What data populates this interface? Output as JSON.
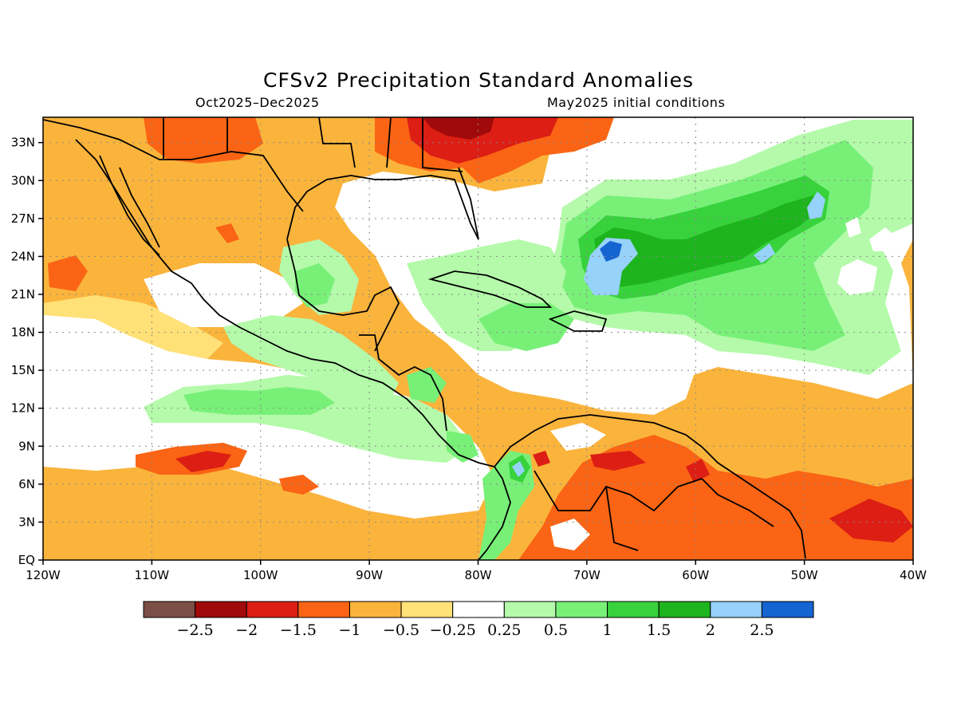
{
  "title": "CFSv2 Precipitation Standard Anomalies",
  "subtitle_left": "Oct2025–Dec2025",
  "subtitle_right": "May2025 initial conditions",
  "axes": {
    "lon_min": -120,
    "lon_max": -40,
    "lat_min": 0,
    "lat_max": 35,
    "lon_ticks": [
      {
        "value": -120,
        "label": "120W"
      },
      {
        "value": -110,
        "label": "110W"
      },
      {
        "value": -100,
        "label": "100W"
      },
      {
        "value": -90,
        "label": "90W"
      },
      {
        "value": -80,
        "label": "80W"
      },
      {
        "value": -70,
        "label": "70W"
      },
      {
        "value": -60,
        "label": "60W"
      },
      {
        "value": -50,
        "label": "50W"
      },
      {
        "value": -40,
        "label": "40W"
      }
    ],
    "lat_ticks": [
      {
        "value": 0,
        "label": "EQ"
      },
      {
        "value": 3,
        "label": "3N"
      },
      {
        "value": 6,
        "label": "6N"
      },
      {
        "value": 9,
        "label": "9N"
      },
      {
        "value": 12,
        "label": "12N"
      },
      {
        "value": 15,
        "label": "15N"
      },
      {
        "value": 18,
        "label": "18N"
      },
      {
        "value": 21,
        "label": "21N"
      },
      {
        "value": 24,
        "label": "24N"
      },
      {
        "value": 27,
        "label": "27N"
      },
      {
        "value": 30,
        "label": "30N"
      },
      {
        "value": 33,
        "label": "33N"
      }
    ],
    "grid": "dotted"
  },
  "colorbar": {
    "colors": [
      "#7b4f45",
      "#a00a0a",
      "#dc1e14",
      "#fa6414",
      "#fab43c",
      "#ffe178",
      "#ffffff",
      "#b4faaa",
      "#78f078",
      "#37d23c",
      "#1eb41e",
      "#96d2fa",
      "#1464d2"
    ],
    "labels": [
      "−2.5",
      "−2",
      "−1.5",
      "−1",
      "−0.5",
      "−0.25",
      "0.25",
      "0.5",
      "1",
      "1.5",
      "2",
      "2.5"
    ]
  },
  "regions": [
    {
      "name": "mexico-interior",
      "level": -0.5,
      "color": "#fab43c"
    },
    {
      "name": "southeast-us",
      "level": -2.5,
      "color": "#a00a0a"
    },
    {
      "name": "western-atlantic",
      "level": 1.5,
      "color": "#37d23c"
    },
    {
      "name": "atlantic-maximum",
      "level": 2.5,
      "color": "#1464d2"
    },
    {
      "name": "northern-south-america",
      "level": -1,
      "color": "#fa6414"
    },
    {
      "name": "eastern-pacific-itcz",
      "level": -1.5,
      "color": "#dc1e14"
    },
    {
      "name": "colombia-pacific-coast",
      "level": 2,
      "color": "#96d2fa"
    },
    {
      "name": "central-america",
      "level": 0.5,
      "color": "#78f078"
    }
  ]
}
